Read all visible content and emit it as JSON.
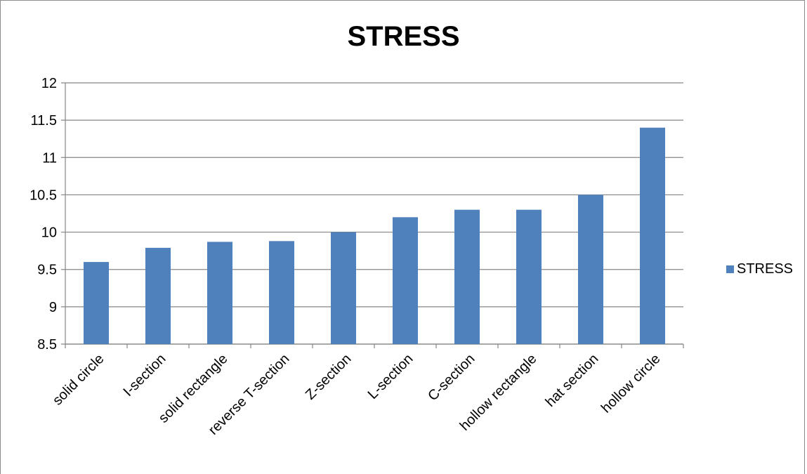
{
  "chart_data": {
    "type": "bar",
    "title": "STRESS",
    "xlabel": "",
    "ylabel": "",
    "categories": [
      "solid circle",
      "I-section",
      "solid rectangle",
      "reverse T-section",
      "Z-section",
      "L-section",
      "C-section",
      "hollow rectangle",
      "hat section",
      "hollow circle"
    ],
    "series": [
      {
        "name": "STRESS",
        "values": [
          9.6,
          9.79,
          9.87,
          9.88,
          10.0,
          10.2,
          10.3,
          10.3,
          10.5,
          11.4
        ]
      }
    ],
    "ylim": [
      8.5,
      12
    ],
    "yticks": [
      "8.5",
      "9",
      "9.5",
      "10",
      "10.5",
      "11",
      "11.5",
      "12"
    ],
    "grid": true,
    "legend": "right",
    "bar_color": "#4f81bd",
    "grid_color": "#868686"
  }
}
